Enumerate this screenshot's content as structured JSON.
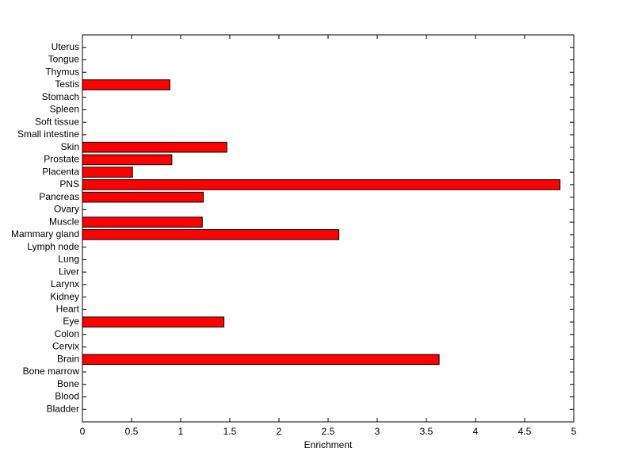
{
  "chart_data": {
    "type": "barh",
    "xlabel": "Enrichment",
    "categories": [
      "Bladder",
      "Blood",
      "Bone",
      "Bone marrow",
      "Brain",
      "Cervix",
      "Colon",
      "Eye",
      "Heart",
      "Kidney",
      "Larynx",
      "Liver",
      "Lung",
      "Lymph node",
      "Mammary gland",
      "Muscle",
      "Ovary",
      "Pancreas",
      "PNS",
      "Placenta",
      "Prostate",
      "Skin",
      "Small intestine",
      "Soft tissue",
      "Spleen",
      "Stomach",
      "Testis",
      "Thymus",
      "Tongue",
      "Uterus"
    ],
    "values": [
      0,
      0,
      0,
      0,
      3.63,
      0,
      0,
      1.44,
      0,
      0,
      0,
      0,
      0,
      0,
      2.61,
      1.22,
      0,
      1.23,
      4.86,
      0.51,
      0.91,
      1.47,
      0,
      0,
      0,
      0,
      0.89,
      0,
      0,
      0
    ],
    "color": "#ff0000",
    "xlim": [
      0,
      5
    ],
    "xticks": [
      0,
      0.5,
      1,
      1.5,
      2,
      2.5,
      3,
      3.5,
      4,
      4.5,
      5
    ]
  }
}
